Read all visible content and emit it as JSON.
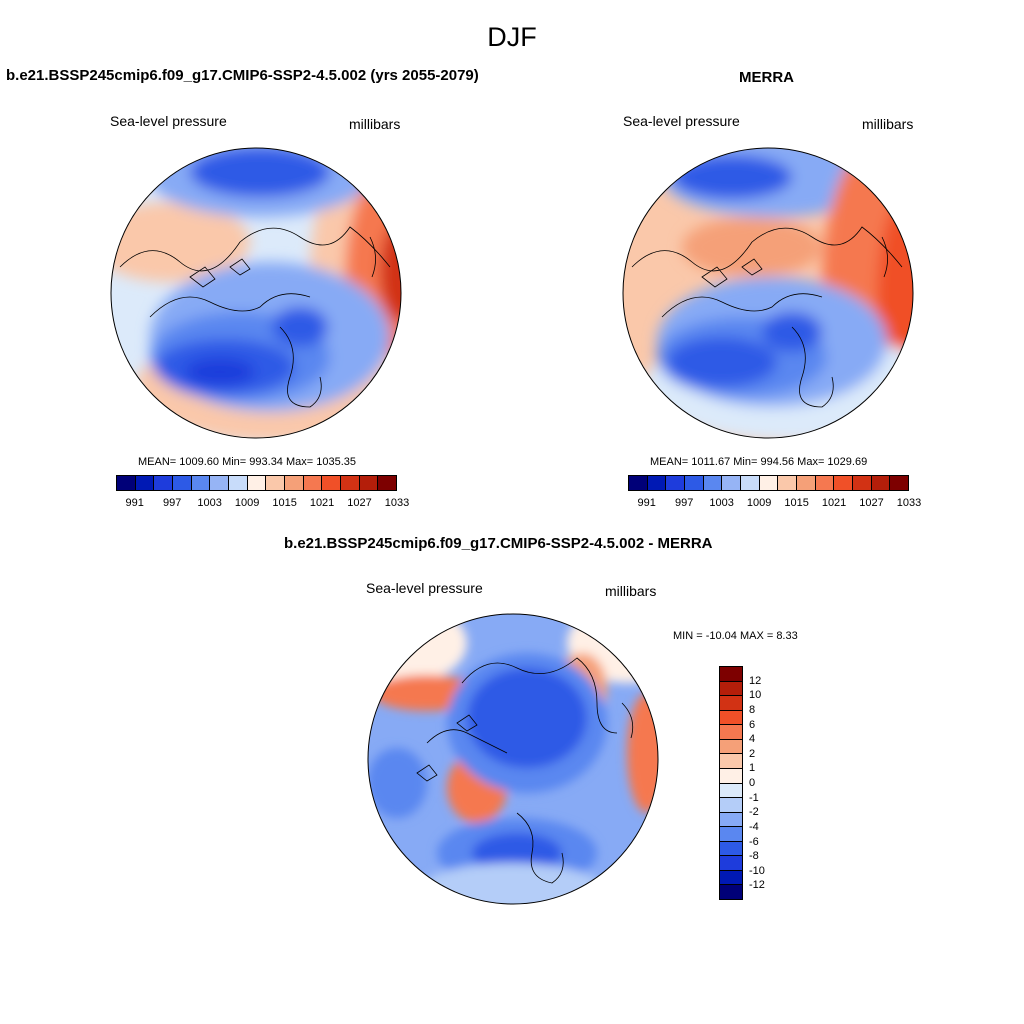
{
  "title": "DJF",
  "panels": [
    {
      "title": "b.e21.BSSP245cmip6.f09_g17.CMIP6-SSP2-4.5.002 (yrs 2055-2079)",
      "variable": "Sea-level pressure",
      "units": "millibars",
      "stats": "MEAN= 1009.60  Min= 993.34  Max= 1035.35"
    },
    {
      "title": "MERRA",
      "variable": "Sea-level pressure",
      "units": "millibars",
      "stats": "MEAN= 1011.67  Min= 994.56  Max= 1029.69"
    },
    {
      "title": "b.e21.BSSP245cmip6.f09_g17.CMIP6-SSP2-4.5.002 - MERRA",
      "variable": "Sea-level pressure",
      "units": "millibars",
      "stats": "MIN = -10.04 MAX =   8.33"
    }
  ],
  "abs_colorbar": {
    "colors": [
      "#000078",
      "#0019b4",
      "#1e3cdc",
      "#2d5ae6",
      "#5a87f0",
      "#96b4f5",
      "#c8dcfa",
      "#fff0e6",
      "#fac8aa",
      "#f5a078",
      "#f57850",
      "#f05028",
      "#d23214",
      "#b41e0a",
      "#7d0000"
    ],
    "tick_labels": [
      "991",
      "997",
      "1003",
      "1009",
      "1015",
      "1021",
      "1027",
      "1033"
    ]
  },
  "diff_colorbar": {
    "colors": [
      "#7d0000",
      "#b41e0a",
      "#d23214",
      "#f05028",
      "#f57850",
      "#f5a078",
      "#fac8aa",
      "#fff0e6",
      "#dceafa",
      "#b4cdf8",
      "#87aaf5",
      "#5a87f0",
      "#2d5ae6",
      "#1e3cdc",
      "#0019b4",
      "#000078"
    ],
    "tick_labels": [
      "12",
      "10",
      "8",
      "6",
      "4",
      "2",
      "1",
      "0",
      "-1",
      "-2",
      "-4",
      "-6",
      "-8",
      "-10",
      "-12"
    ]
  }
}
